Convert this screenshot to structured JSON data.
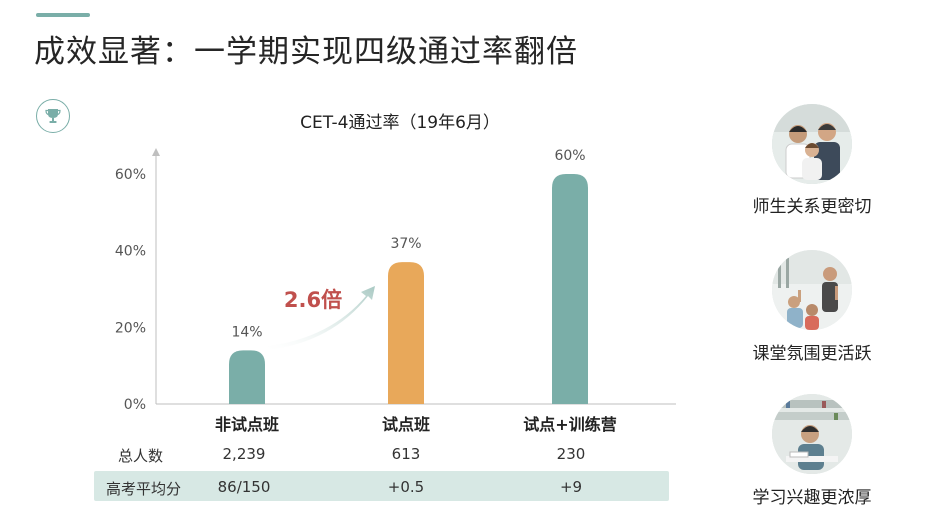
{
  "header": {
    "title": "成效显著：一学期实现四级通过率翻倍"
  },
  "icons": {
    "badge": "trophy-icon"
  },
  "colors": {
    "accent": "#7aaea8",
    "orange": "#e8a85a",
    "multiplier": "#c0504d",
    "table_bg": "#d7e8e4"
  },
  "chart_data": {
    "type": "bar",
    "title": "CET-4通过率（19年6月）",
    "categories": [
      "非试点班",
      "试点班",
      "试点+训练营"
    ],
    "values": [
      14,
      37,
      60
    ],
    "data_labels": [
      "14%",
      "37%",
      "60%"
    ],
    "bar_colors": [
      "#7aaea8",
      "#e8a85a",
      "#7aaea8"
    ],
    "y_ticks": [
      0,
      20,
      40,
      60
    ],
    "y_tick_labels": [
      "0%",
      "20%",
      "40%",
      "60%"
    ],
    "ylim": [
      0,
      70
    ],
    "annotation": "2.6倍",
    "grid": false
  },
  "table": {
    "rows": [
      {
        "label": "总人数",
        "values": [
          "2,239",
          "613",
          "230"
        ]
      },
      {
        "label": "高考平均分",
        "values": [
          "86/150",
          "+0.5",
          "+9"
        ]
      }
    ]
  },
  "side_panel": {
    "items": [
      {
        "caption": "师生关系更密切"
      },
      {
        "caption": "课堂氛围更活跃"
      },
      {
        "caption": "学习兴趣更浓厚"
      }
    ]
  }
}
